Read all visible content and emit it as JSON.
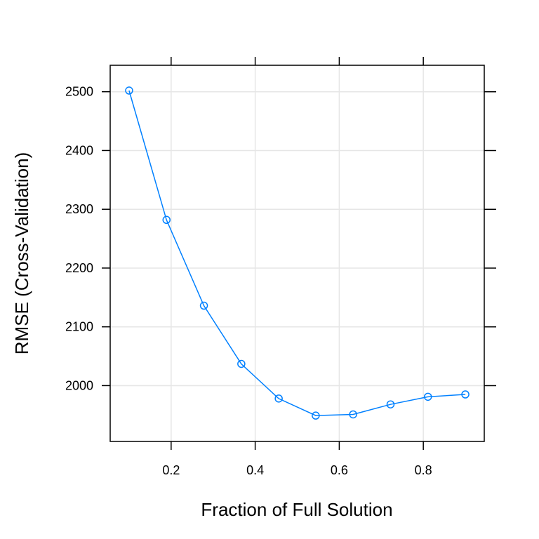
{
  "chart_data": {
    "type": "line",
    "title": "",
    "xlabel": "Fraction of Full Solution",
    "ylabel": "RMSE (Cross-Validation)",
    "xlim": [
      0.055,
      0.945
    ],
    "ylim": [
      1905,
      2545
    ],
    "x_ticks": [
      0.2,
      0.4,
      0.6,
      0.8
    ],
    "x_tick_labels": [
      "0.2",
      "0.4",
      "0.6",
      "0.8"
    ],
    "y_ticks": [
      2000,
      2100,
      2200,
      2300,
      2400,
      2500
    ],
    "y_tick_labels": [
      "2000",
      "2100",
      "2200",
      "2300",
      "2400",
      "2500"
    ],
    "grid": true,
    "series": [
      {
        "x": [
          0.1,
          0.189,
          0.278,
          0.367,
          0.456,
          0.544,
          0.633,
          0.722,
          0.811,
          0.9
        ],
        "y": [
          2502,
          2282,
          2136,
          2037,
          1978,
          1949,
          1951,
          1968,
          1981,
          1985
        ]
      }
    ],
    "colors": {
      "series": "#0080FF",
      "grid": "#E6E6E6",
      "axis": "#000000"
    }
  }
}
